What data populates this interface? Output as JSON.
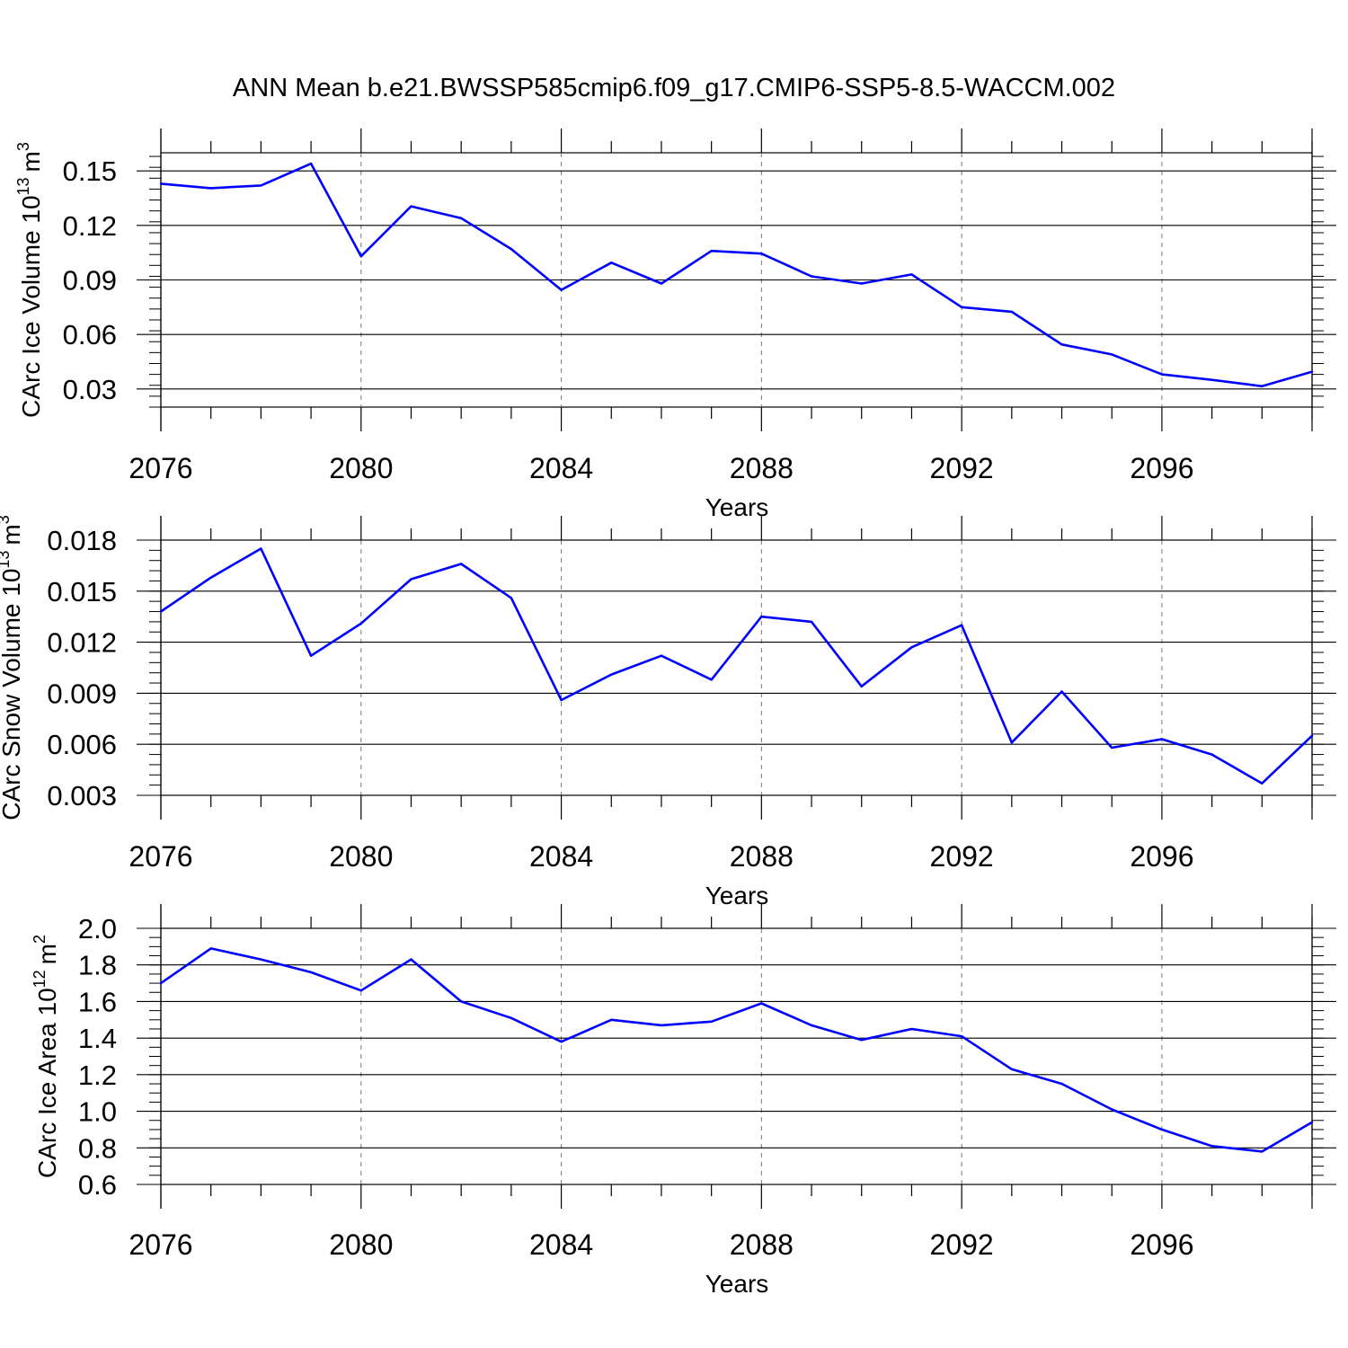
{
  "title": "ANN Mean b.e21.BWSSP585cmip6.f09_g17.CMIP6-SSP5-8.5-WACCM.002",
  "line_color": "#0000ff",
  "chart_data": [
    {
      "type": "line",
      "ylabel": "CArc Ice Volume 10",
      "ylabel_exp": "13",
      "ylabel_unit": "m",
      "ylabel_unit_exp": "3",
      "xlabel": "Years",
      "xlim": [
        2076,
        2099
      ],
      "ylim": [
        0.02,
        0.16
      ],
      "yticks": [
        "0.03",
        "0.06",
        "0.09",
        "0.12",
        "0.15"
      ],
      "xticks": [
        "2076",
        "2080",
        "2084",
        "2088",
        "2092",
        "2096"
      ],
      "x": [
        2076,
        2077,
        2078,
        2079,
        2080,
        2081,
        2082,
        2083,
        2084,
        2085,
        2086,
        2087,
        2088,
        2089,
        2090,
        2091,
        2092,
        2093,
        2094,
        2095,
        2096,
        2097,
        2098,
        2099
      ],
      "y": [
        0.143,
        0.1405,
        0.142,
        0.154,
        0.103,
        0.1305,
        0.124,
        0.107,
        0.0845,
        0.0995,
        0.088,
        0.106,
        0.1045,
        0.092,
        0.088,
        0.093,
        0.075,
        0.0725,
        0.0545,
        0.049,
        0.038,
        0.035,
        0.0315,
        0.0395
      ]
    },
    {
      "type": "line",
      "ylabel": "CArc Snow Volume 10",
      "ylabel_exp": "13",
      "ylabel_unit": "m",
      "ylabel_unit_exp": "3",
      "xlabel": "Years",
      "xlim": [
        2076,
        2099
      ],
      "ylim": [
        0.003,
        0.018
      ],
      "yticks": [
        "0.003",
        "0.006",
        "0.009",
        "0.012",
        "0.015",
        "0.018"
      ],
      "xticks": [
        "2076",
        "2080",
        "2084",
        "2088",
        "2092",
        "2096"
      ],
      "x": [
        2076,
        2077,
        2078,
        2079,
        2080,
        2081,
        2082,
        2083,
        2084,
        2085,
        2086,
        2087,
        2088,
        2089,
        2090,
        2091,
        2092,
        2093,
        2094,
        2095,
        2096,
        2097,
        2098,
        2099
      ],
      "y": [
        0.0138,
        0.0158,
        0.0175,
        0.0112,
        0.0131,
        0.0157,
        0.0166,
        0.0146,
        0.0086,
        0.0101,
        0.0112,
        0.0098,
        0.0135,
        0.0132,
        0.0094,
        0.0117,
        0.013,
        0.0061,
        0.0091,
        0.0058,
        0.0063,
        0.0054,
        0.0037,
        0.0065
      ]
    },
    {
      "type": "line",
      "ylabel": "CArc Ice Area 10",
      "ylabel_exp": "12",
      "ylabel_unit": "m",
      "ylabel_unit_exp": "2",
      "xlabel": "Years",
      "xlim": [
        2076,
        2099
      ],
      "ylim": [
        0.6,
        2.0
      ],
      "yticks": [
        "0.6",
        "0.8",
        "1.0",
        "1.2",
        "1.4",
        "1.6",
        "1.8",
        "2.0"
      ],
      "xticks": [
        "2076",
        "2080",
        "2084",
        "2088",
        "2092",
        "2096"
      ],
      "x": [
        2076,
        2077,
        2078,
        2079,
        2080,
        2081,
        2082,
        2083,
        2084,
        2085,
        2086,
        2087,
        2088,
        2089,
        2090,
        2091,
        2092,
        2093,
        2094,
        2095,
        2096,
        2097,
        2098,
        2099
      ],
      "y": [
        1.7,
        1.89,
        1.83,
        1.76,
        1.66,
        1.83,
        1.6,
        1.51,
        1.38,
        1.5,
        1.47,
        1.49,
        1.59,
        1.47,
        1.39,
        1.45,
        1.41,
        1.23,
        1.15,
        1.01,
        0.9,
        0.81,
        0.78,
        0.94
      ]
    }
  ]
}
